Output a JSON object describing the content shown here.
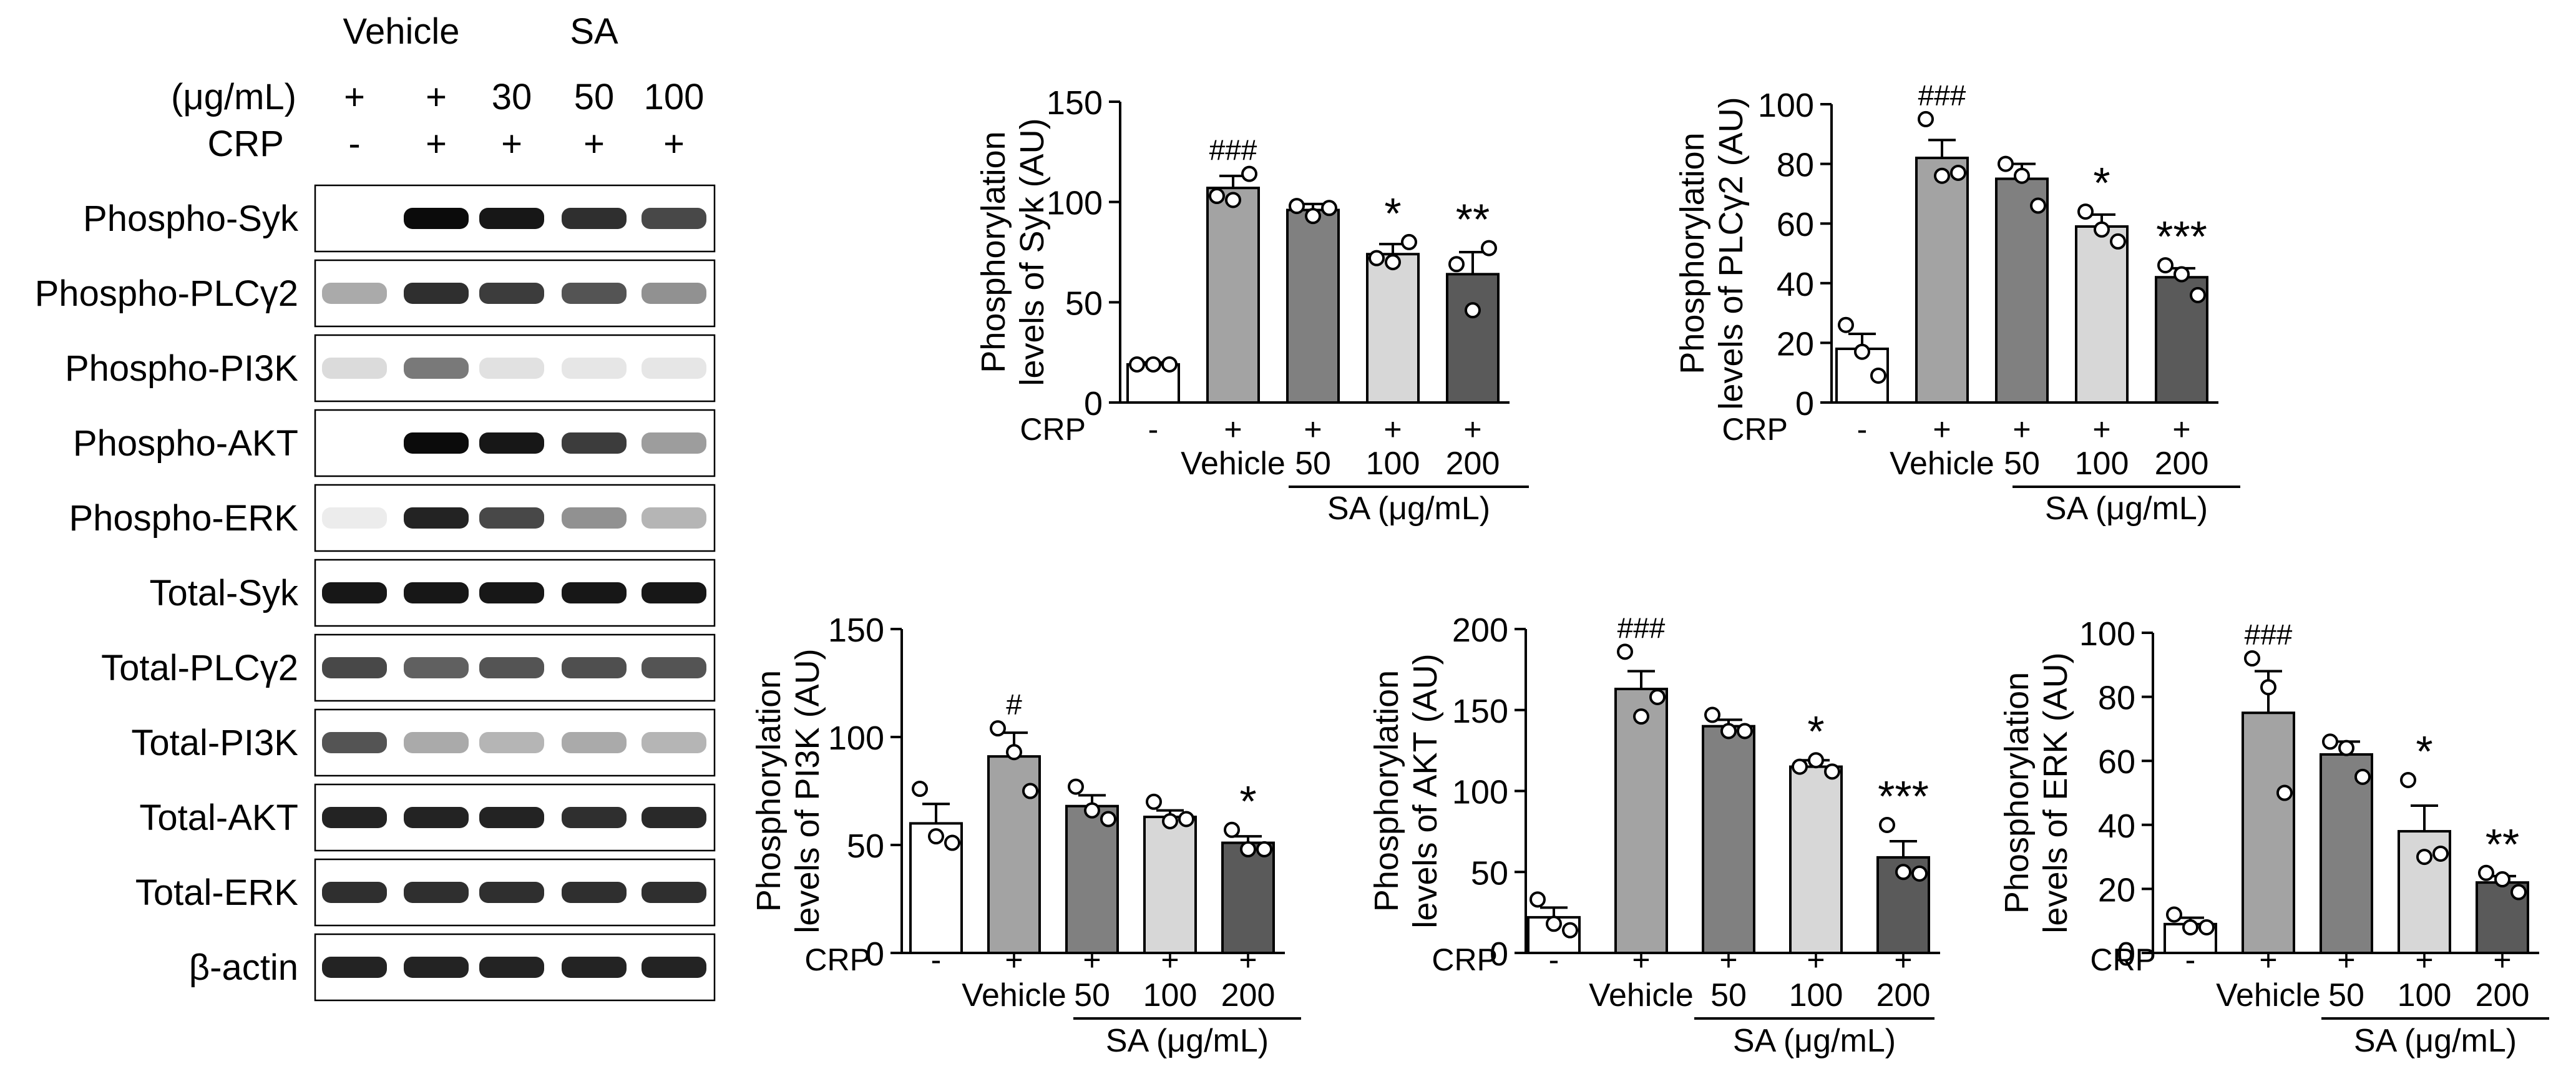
{
  "blot": {
    "vehicle_label": "Vehicle",
    "sa_label": "SA",
    "dose_row": {
      "label": "(μg/mL)",
      "values": [
        "+",
        "+",
        "30",
        "50",
        "100"
      ]
    },
    "crp_row": {
      "label": "CRP",
      "values": [
        "-",
        "+",
        "+",
        "+",
        "+"
      ]
    },
    "lanes": [
      {
        "label": "Phospho-Syk",
        "intensity": [
          0.0,
          1.0,
          0.95,
          0.85,
          0.75
        ]
      },
      {
        "label": "Phospho-PLCγ2",
        "intensity": [
          0.35,
          0.85,
          0.8,
          0.7,
          0.45
        ]
      },
      {
        "label": "Phospho-PI3K",
        "intensity": [
          0.15,
          0.55,
          0.12,
          0.1,
          0.1
        ]
      },
      {
        "label": "Phospho-AKT",
        "intensity": [
          0.0,
          1.0,
          0.95,
          0.8,
          0.4
        ]
      },
      {
        "label": "Phospho-ERK",
        "intensity": [
          0.08,
          0.9,
          0.75,
          0.45,
          0.3
        ]
      },
      {
        "label": "Total-Syk",
        "intensity": [
          0.95,
          0.95,
          0.95,
          0.95,
          0.95
        ]
      },
      {
        "label": "Total-PLCγ2",
        "intensity": [
          0.75,
          0.65,
          0.7,
          0.72,
          0.7
        ]
      },
      {
        "label": "Total-PI3K",
        "intensity": [
          0.7,
          0.35,
          0.3,
          0.35,
          0.3
        ]
      },
      {
        "label": "Total-AKT",
        "intensity": [
          0.9,
          0.9,
          0.9,
          0.85,
          0.88
        ]
      },
      {
        "label": "Total-ERK",
        "intensity": [
          0.85,
          0.85,
          0.85,
          0.85,
          0.85
        ]
      },
      {
        "label": "β-actin",
        "intensity": [
          0.9,
          0.9,
          0.9,
          0.9,
          0.9
        ]
      }
    ]
  },
  "chart_data": [
    {
      "type": "bar",
      "ylabel_line1": "Phosphorylation",
      "ylabel_line2": "levels of Syk (AU)",
      "ylim": [
        0,
        150
      ],
      "yticks": [
        0,
        50,
        100,
        150
      ],
      "crp_label": "CRP",
      "crp_signs": [
        "-",
        "+",
        "+",
        "+",
        "+"
      ],
      "categories": [
        "",
        "Vehicle",
        "50",
        "100",
        "200"
      ],
      "sa_label": "SA (μg/mL)",
      "values": [
        19,
        107,
        96,
        74,
        64
      ],
      "sem": [
        1,
        6,
        3,
        5,
        11
      ],
      "points": [
        [
          19,
          19,
          19
        ],
        [
          103,
          101,
          114
        ],
        [
          98,
          93,
          97
        ],
        [
          72,
          70,
          80
        ],
        [
          69,
          46,
          77
        ]
      ],
      "annotations": [
        "",
        "###",
        "",
        "*",
        "**"
      ]
    },
    {
      "type": "bar",
      "ylabel_line1": "Phosphorylation",
      "ylabel_line2": "levels of PLCγ2 (AU)",
      "ylim": [
        0,
        100
      ],
      "yticks": [
        0,
        20,
        40,
        60,
        80,
        100
      ],
      "crp_label": "CRP",
      "crp_signs": [
        "-",
        "+",
        "+",
        "+",
        "+"
      ],
      "categories": [
        "",
        "Vehicle",
        "50",
        "100",
        "200"
      ],
      "sa_label": "SA (μg/mL)",
      "values": [
        18,
        82,
        75,
        59,
        42
      ],
      "sem": [
        5,
        6,
        5,
        4,
        3
      ],
      "points": [
        [
          26,
          17,
          9
        ],
        [
          95,
          76,
          77
        ],
        [
          80,
          76,
          66
        ],
        [
          64,
          58,
          54
        ],
        [
          46,
          43,
          36
        ]
      ],
      "annotations": [
        "",
        "###",
        "",
        "*",
        "***"
      ]
    },
    {
      "type": "bar",
      "ylabel_line1": "Phosphorylation",
      "ylabel_line2": "levels of PI3K (AU)",
      "ylim": [
        0,
        150
      ],
      "yticks": [
        0,
        50,
        100,
        150
      ],
      "crp_label": "CRP",
      "crp_signs": [
        "-",
        "+",
        "+",
        "+",
        "+"
      ],
      "categories": [
        "",
        "Vehicle",
        "50",
        "100",
        "200"
      ],
      "sa_label": "SA (μg/mL)",
      "values": [
        60,
        91,
        68,
        63,
        51
      ],
      "sem": [
        9,
        11,
        5,
        3,
        3
      ],
      "points": [
        [
          76,
          54,
          51
        ],
        [
          104,
          93,
          75
        ],
        [
          77,
          66,
          62
        ],
        [
          70,
          61,
          62
        ],
        [
          57,
          48,
          48
        ]
      ],
      "annotations": [
        "",
        "#",
        "",
        "",
        "*"
      ]
    },
    {
      "type": "bar",
      "ylabel_line1": "Phosphorylation",
      "ylabel_line2": "levels of AKT (AU)",
      "ylim": [
        0,
        200
      ],
      "yticks": [
        0,
        50,
        100,
        150,
        200
      ],
      "crp_label": "CRP",
      "crp_signs": [
        "-",
        "+",
        "+",
        "+",
        "+"
      ],
      "categories": [
        "",
        "Vehicle",
        "50",
        "100",
        "200"
      ],
      "sa_label": "SA (μg/mL)",
      "values": [
        22,
        163,
        140,
        115,
        59
      ],
      "sem": [
        6,
        11,
        4,
        4,
        10
      ],
      "points": [
        [
          33,
          18,
          14
        ],
        [
          186,
          146,
          158
        ],
        [
          147,
          137,
          137
        ],
        [
          115,
          119,
          112
        ],
        [
          79,
          50,
          49
        ]
      ],
      "annotations": [
        "",
        "###",
        "",
        "*",
        "***"
      ]
    },
    {
      "type": "bar",
      "ylabel_line1": "Phosphorylation",
      "ylabel_line2": "levels of ERK (AU)",
      "ylim": [
        0,
        100
      ],
      "yticks": [
        0,
        20,
        40,
        60,
        80,
        100
      ],
      "crp_label": "CRP",
      "crp_signs": [
        "-",
        "+",
        "+",
        "+",
        "+"
      ],
      "categories": [
        "",
        "Vehicle",
        "50",
        "100",
        "200"
      ],
      "sa_label": "SA (μg/mL)",
      "values": [
        9,
        75,
        62,
        38,
        22
      ],
      "sem": [
        2,
        13,
        4,
        8,
        2
      ],
      "points": [
        [
          12,
          8,
          8
        ],
        [
          92,
          83,
          50
        ],
        [
          66,
          64,
          55
        ],
        [
          54,
          30,
          31
        ],
        [
          25,
          23,
          19
        ]
      ],
      "annotations": [
        "",
        "###",
        "",
        "*",
        "**"
      ]
    }
  ],
  "colors": {
    "bar_fills": [
      "#ffffff",
      "#a3a3a3",
      "#808080",
      "#d7d7d7",
      "#5a5a5a"
    ],
    "ink": "#000000",
    "band": "#0b0b0b",
    "blot_bg": "#ffffff"
  }
}
